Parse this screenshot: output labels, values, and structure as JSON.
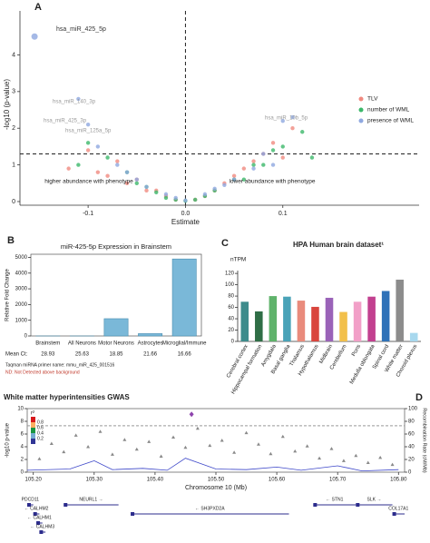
{
  "chart_data": [
    {
      "type": "scatter",
      "label": "A",
      "xlabel": "Estimate",
      "ylabel": "-log10 (p-value)",
      "xlim": [
        -0.17,
        0.24
      ],
      "ylim": [
        -0.1,
        5.2
      ],
      "xticks": [
        -0.1,
        {
          "value": 0,
          "label": "0.0"
        },
        0.1
      ],
      "yticks": [
        0,
        1,
        2,
        3,
        4
      ],
      "hline": 1.3,
      "vline": 0,
      "notes": [
        "higher abundance with phenotype",
        "lower abundance with phenotype"
      ],
      "annotations": [
        "hsa_miR_425_5p",
        "hsa_miR_140_3p",
        "hsa_miR_425_3p",
        "hsa_miR_125a_5p",
        "hsa_miR_10b_5p"
      ],
      "series": [
        {
          "name": "TLV",
          "color": "#f08a80",
          "x": [
            -0.12,
            -0.1,
            -0.09,
            -0.08,
            -0.07,
            -0.06,
            -0.05,
            -0.04,
            -0.03,
            -0.02,
            -0.01,
            0.01,
            0.02,
            0.03,
            0.04,
            0.05,
            0.06,
            0.07,
            0.08,
            0.09,
            0.1,
            0.11
          ],
          "y": [
            0.9,
            1.4,
            0.8,
            0.7,
            1.1,
            0.5,
            0.6,
            0.3,
            0.3,
            0.15,
            0.05,
            0.05,
            0.15,
            0.3,
            0.5,
            0.7,
            0.9,
            1.1,
            1.3,
            1.6,
            1.2,
            2.0
          ]
        },
        {
          "name": "number of WML",
          "color": "#3cb86a",
          "x": [
            -0.11,
            -0.1,
            -0.08,
            -0.06,
            -0.05,
            -0.04,
            -0.03,
            -0.02,
            -0.01,
            0.0,
            0.01,
            0.02,
            0.03,
            0.05,
            0.06,
            0.07,
            0.08,
            0.09,
            0.1,
            0.12,
            0.13
          ],
          "y": [
            1.0,
            1.6,
            1.2,
            0.8,
            0.5,
            0.4,
            0.25,
            0.1,
            0.05,
            0.02,
            0.05,
            0.15,
            0.3,
            0.6,
            0.6,
            1.0,
            1.0,
            1.4,
            1.5,
            1.9,
            1.2
          ]
        },
        {
          "name": "presence of WML",
          "color": "#8fa8e0",
          "x": [
            -0.155,
            -0.11,
            -0.1,
            -0.09,
            -0.07,
            -0.06,
            -0.05,
            -0.04,
            -0.02,
            -0.01,
            0.0,
            0.02,
            0.03,
            0.04,
            0.05,
            0.07,
            0.08,
            0.09,
            0.1,
            0.11
          ],
          "y": [
            4.5,
            2.8,
            2.1,
            1.5,
            1.0,
            0.8,
            0.6,
            0.4,
            0.2,
            0.1,
            0.03,
            0.2,
            0.35,
            0.45,
            0.6,
            0.9,
            1.3,
            1.0,
            2.2,
            2.3
          ]
        }
      ]
    },
    {
      "type": "bar",
      "label": "B",
      "title": "miR-425-5p Expression in Brainstem",
      "ylabel": "Relative Fold Change",
      "categories": [
        "Brainstem",
        "All Neurons",
        "Motor Neurons",
        "Astrocytes",
        "Microglial/Immune"
      ],
      "values": [
        1,
        1,
        1100,
        150,
        4900
      ],
      "color": "#7ab8d8",
      "ylim": [
        0,
        5200
      ],
      "yticks": [
        0,
        1000,
        2000,
        3000,
        4000,
        5000
      ],
      "mean_ct_label": "Mean Ct:",
      "mean_ct": [
        28.93,
        25.63,
        18.85,
        21.66,
        16.66
      ],
      "notes": [
        "Taqman miRNA primer name: mmu_miR_425_001516",
        "ND: Not Detected above background"
      ]
    },
    {
      "type": "bar",
      "label": "C",
      "title": "HPA Human brain dataset¹",
      "ylabel": "nTPM",
      "categories": [
        "Cerebral cortex",
        "Hippocampal formation",
        "Amygdala",
        "Basal ganglia",
        "Thalamus",
        "Hypothalamus",
        "Midbrain",
        "Cerebellum",
        "Pons",
        "Medulla oblongata",
        "Spinal cord",
        "White matter",
        "Choroid plexus"
      ],
      "values": [
        70,
        53,
        80,
        79,
        72,
        61,
        77,
        52,
        70,
        79,
        89,
        109,
        15
      ],
      "colors": [
        "#3d8c8c",
        "#2f6e46",
        "#5fb36b",
        "#4aa3b8",
        "#e98b7c",
        "#d9453d",
        "#9a63b8",
        "#f2c04b",
        "#f2a0c8",
        "#c2408f",
        "#2f72b8",
        "#8c8c8c",
        "#a8d8ee"
      ],
      "ylim": [
        0,
        125
      ],
      "yticks": [
        0,
        20,
        40,
        60,
        80,
        100,
        120
      ]
    },
    {
      "type": "locuszoom",
      "label": "D",
      "title": "White matter hyperintensities GWAS",
      "xlabel": "Chromosome 10 (Mb)",
      "ylabel": "-log10 p-value",
      "y2label": "Recombination Rate (cM/Mb)",
      "xlim": [
        105.19,
        105.81
      ],
      "ylim": [
        0,
        10
      ],
      "y2lim": [
        0,
        100
      ],
      "xticks": [
        {
          "value": 105.2,
          "label": "105.20"
        },
        {
          "value": 105.3,
          "label": "105.30"
        },
        {
          "value": 105.4,
          "label": "105.40"
        },
        {
          "value": 105.5,
          "label": "105.50"
        },
        {
          "value": 105.6,
          "label": "105.60"
        },
        {
          "value": 105.7,
          "label": "105.70"
        },
        {
          "value": 105.8,
          "label": "105.80"
        }
      ],
      "yticks": [
        0,
        2,
        4,
        6,
        8,
        10
      ],
      "y2ticks": [
        0,
        20,
        40,
        60,
        80,
        100
      ],
      "hline": 7.3,
      "ld_legend": {
        "title": "r²",
        "levels": [
          0.8,
          0.6,
          0.4,
          0.2
        ],
        "colors": [
          "#d7191c",
          "#fdae61",
          "#1a9641",
          "#74add1",
          "#313695"
        ]
      },
      "points": {
        "color": "#8a8a8a",
        "x": [
          105.21,
          105.23,
          105.25,
          105.27,
          105.29,
          105.31,
          105.33,
          105.35,
          105.37,
          105.39,
          105.41,
          105.43,
          105.45,
          105.47,
          105.49,
          105.51,
          105.53,
          105.55,
          105.57,
          105.59,
          105.61,
          105.63,
          105.65,
          105.67,
          105.69,
          105.71,
          105.73,
          105.75,
          105.77,
          105.79
        ],
        "y": [
          2.1,
          4.5,
          3.2,
          5.8,
          4.0,
          6.4,
          2.8,
          5.1,
          3.6,
          4.8,
          2.5,
          5.5,
          3.9,
          6.9,
          4.2,
          5.0,
          3.1,
          6.2,
          4.4,
          2.9,
          5.6,
          3.3,
          4.1,
          2.2,
          3.7,
          1.8,
          2.6,
          1.5,
          2.3,
          1.2
        ],
        "lead_x": 105.46,
        "lead_y": 9.1,
        "lead_color": "#8e44ad"
      },
      "recomb": {
        "color": "#3d47c9",
        "x": [
          105.19,
          105.26,
          105.3,
          105.33,
          105.38,
          105.42,
          105.45,
          105.5,
          105.55,
          105.6,
          105.64,
          105.7,
          105.74,
          105.8
        ],
        "values": [
          3,
          5,
          18,
          4,
          6,
          3,
          22,
          5,
          4,
          8,
          3,
          10,
          2,
          4
        ]
      },
      "genes": [
        {
          "name": "PDCD11",
          "start": 105.19,
          "end": 105.2,
          "row": 0
        },
        {
          "name": "NEURL1 →",
          "start": 105.25,
          "end": 105.34,
          "row": 0
        },
        {
          "name": "← SH3PXD2A",
          "start": 105.36,
          "end": 105.62,
          "row": 1
        },
        {
          "name": "← STN1",
          "start": 105.66,
          "end": 105.73,
          "row": 0
        },
        {
          "name": "SLK →",
          "start": 105.73,
          "end": 105.79,
          "row": 0
        },
        {
          "name": "COL17A1",
          "start": 105.79,
          "end": 105.81,
          "row": 1
        },
        {
          "name": "← CALHM2",
          "start": 105.2,
          "end": 105.21,
          "row": 1
        },
        {
          "name": "← CALHM1",
          "start": 105.205,
          "end": 105.215,
          "row": 2
        },
        {
          "name": "← CALHM3",
          "start": 105.21,
          "end": 105.22,
          "row": 3
        }
      ]
    }
  ]
}
